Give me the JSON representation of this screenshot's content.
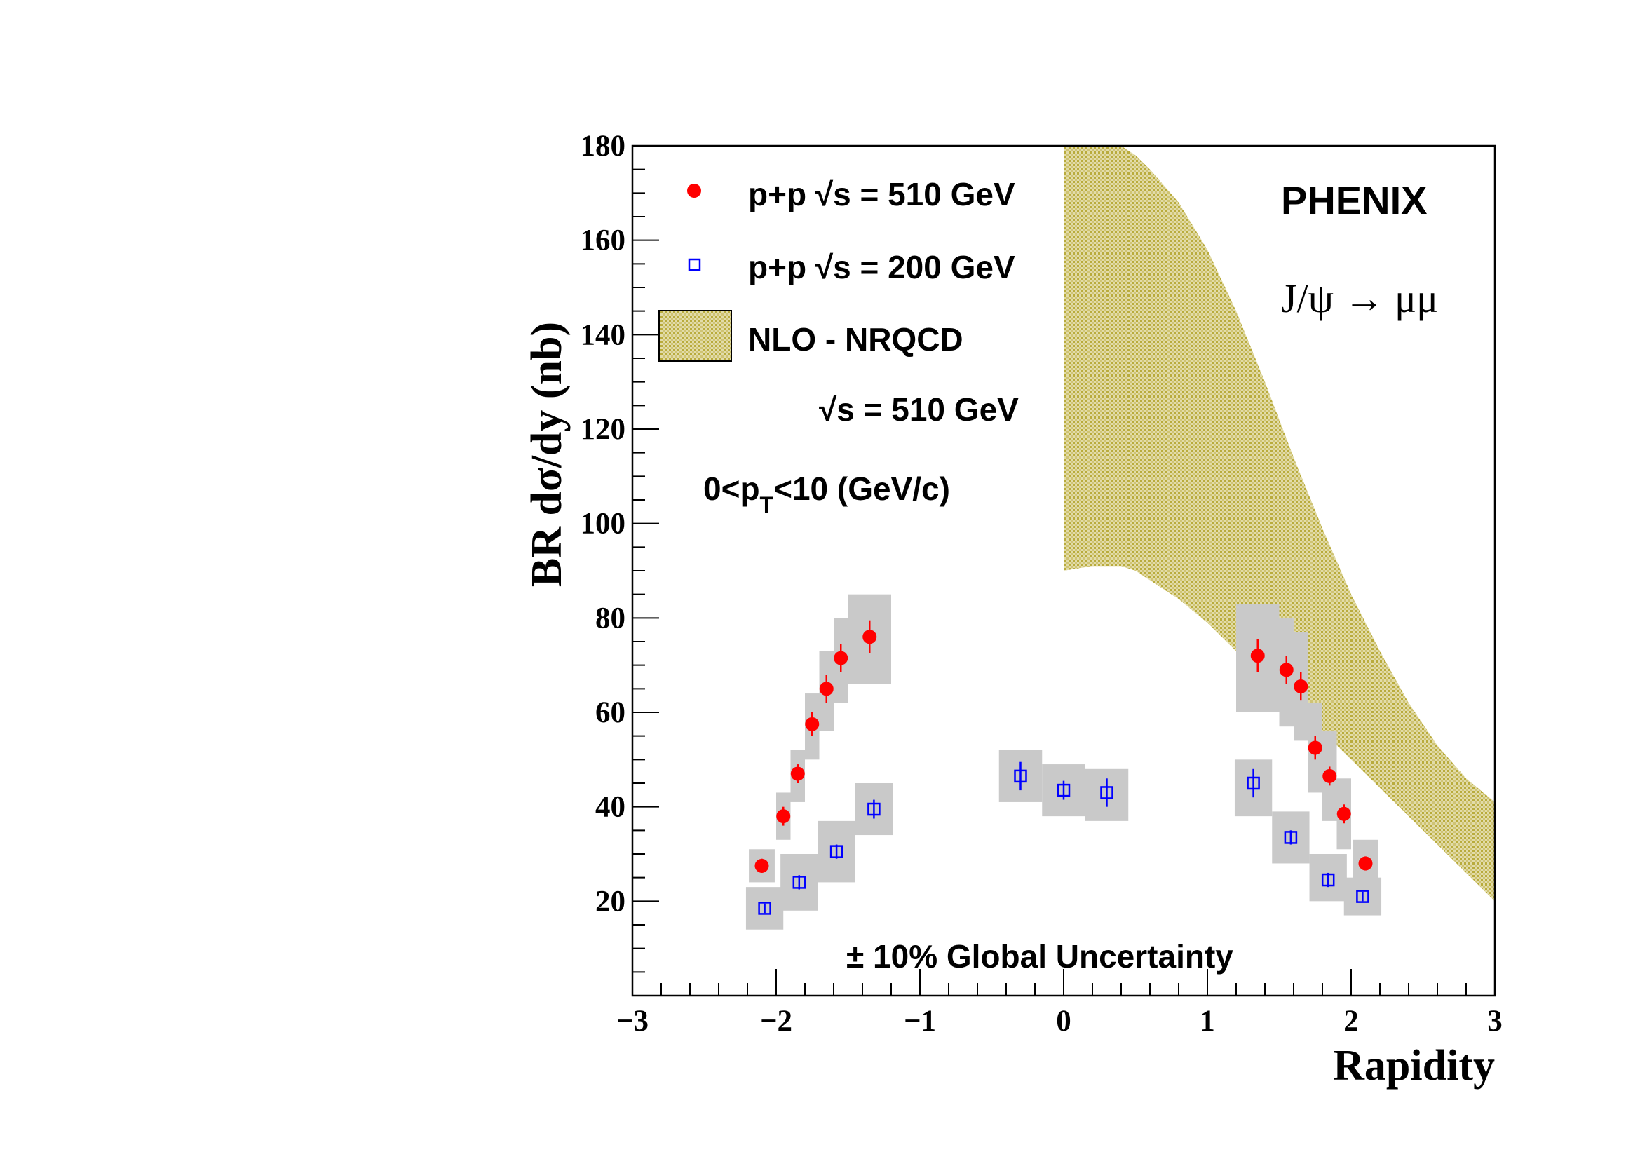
{
  "chart_data": {
    "type": "scatter",
    "xlabel": "Rapidity",
    "ylabel": "BR dσ/dy (nb)",
    "xlim": [
      -3,
      3
    ],
    "ylim": [
      0,
      180
    ],
    "x_ticks": [
      -3,
      -2,
      -1,
      0,
      1,
      2,
      3
    ],
    "x_tick_labels": [
      "−3",
      "−2",
      "−1",
      "0",
      "1",
      "2",
      "3"
    ],
    "y_ticks": [
      20,
      40,
      60,
      80,
      100,
      120,
      140,
      160,
      180
    ],
    "y_tick_labels": [
      "20",
      "40",
      "60",
      "80",
      "100",
      "120",
      "140",
      "160",
      "180"
    ],
    "grid": false,
    "legend_position": "top-left",
    "series": [
      {
        "name": "p+p  √s = 510 GeV",
        "marker": "filled-circle",
        "color": "#ff0000",
        "points": [
          {
            "x": -2.1,
            "y": 27.5,
            "err": 1.5,
            "sys_half_w": 0.09,
            "sys_lo": 24,
            "sys_hi": 31
          },
          {
            "x": -1.95,
            "y": 38.0,
            "err": 2.0,
            "sys_half_w": 0.05,
            "sys_lo": 33,
            "sys_hi": 43
          },
          {
            "x": -1.85,
            "y": 47.0,
            "err": 2.0,
            "sys_half_w": 0.05,
            "sys_lo": 41,
            "sys_hi": 52
          },
          {
            "x": -1.75,
            "y": 57.5,
            "err": 2.5,
            "sys_half_w": 0.05,
            "sys_lo": 50,
            "sys_hi": 64
          },
          {
            "x": -1.65,
            "y": 65.0,
            "err": 3.0,
            "sys_half_w": 0.05,
            "sys_lo": 56,
            "sys_hi": 73
          },
          {
            "x": -1.55,
            "y": 71.5,
            "err": 3.0,
            "sys_half_w": 0.05,
            "sys_lo": 62,
            "sys_hi": 80
          },
          {
            "x": -1.35,
            "y": 76.0,
            "err": 3.5,
            "sys_half_w": 0.15,
            "sys_lo": 66,
            "sys_hi": 85
          },
          {
            "x": 1.35,
            "y": 72.0,
            "err": 3.5,
            "sys_half_w": 0.15,
            "sys_lo": 60,
            "sys_hi": 83
          },
          {
            "x": 1.55,
            "y": 69.0,
            "err": 3.0,
            "sys_half_w": 0.05,
            "sys_lo": 57,
            "sys_hi": 80
          },
          {
            "x": 1.65,
            "y": 65.5,
            "err": 3.0,
            "sys_half_w": 0.05,
            "sys_lo": 54,
            "sys_hi": 77
          },
          {
            "x": 1.75,
            "y": 52.5,
            "err": 2.5,
            "sys_half_w": 0.05,
            "sys_lo": 43,
            "sys_hi": 62
          },
          {
            "x": 1.85,
            "y": 46.5,
            "err": 2.0,
            "sys_half_w": 0.05,
            "sys_lo": 37,
            "sys_hi": 56
          },
          {
            "x": 1.95,
            "y": 38.5,
            "err": 2.0,
            "sys_half_w": 0.05,
            "sys_lo": 31,
            "sys_hi": 46
          },
          {
            "x": 2.1,
            "y": 28.0,
            "err": 1.5,
            "sys_half_w": 0.09,
            "sys_lo": 23,
            "sys_hi": 33
          }
        ]
      },
      {
        "name": "p+p  √s = 200 GeV",
        "marker": "open-square",
        "color": "#0000ff",
        "points": [
          {
            "x": -2.08,
            "y": 18.5,
            "err": 1.0,
            "sys_half_w": 0.13,
            "sys_lo": 14,
            "sys_hi": 23
          },
          {
            "x": -1.84,
            "y": 24.0,
            "err": 1.5,
            "sys_half_w": 0.13,
            "sys_lo": 18,
            "sys_hi": 30
          },
          {
            "x": -1.58,
            "y": 30.5,
            "err": 1.5,
            "sys_half_w": 0.13,
            "sys_lo": 24,
            "sys_hi": 37
          },
          {
            "x": -1.32,
            "y": 39.5,
            "err": 2.0,
            "sys_half_w": 0.13,
            "sys_lo": 34,
            "sys_hi": 45
          },
          {
            "x": -0.3,
            "y": 46.5,
            "err": 3.0,
            "sys_half_w": 0.15,
            "sys_lo": 41,
            "sys_hi": 52
          },
          {
            "x": 0.0,
            "y": 43.5,
            "err": 2.0,
            "sys_half_w": 0.15,
            "sys_lo": 38,
            "sys_hi": 49
          },
          {
            "x": 0.3,
            "y": 43.0,
            "err": 3.0,
            "sys_half_w": 0.15,
            "sys_lo": 37,
            "sys_hi": 48
          },
          {
            "x": 1.32,
            "y": 45.0,
            "err": 3.0,
            "sys_half_w": 0.13,
            "sys_lo": 38,
            "sys_hi": 50
          },
          {
            "x": 1.58,
            "y": 33.5,
            "err": 1.5,
            "sys_half_w": 0.13,
            "sys_lo": 28,
            "sys_hi": 39
          },
          {
            "x": 1.84,
            "y": 24.5,
            "err": 1.5,
            "sys_half_w": 0.13,
            "sys_lo": 20,
            "sys_hi": 30
          },
          {
            "x": 2.08,
            "y": 21.0,
            "err": 1.0,
            "sys_half_w": 0.13,
            "sys_lo": 17,
            "sys_hi": 25
          }
        ]
      }
    ],
    "band": {
      "name": "NLO - NRQCD",
      "color": "#c2b548",
      "x": [
        0.0,
        0.2,
        0.3,
        0.4,
        0.5,
        0.6,
        0.8,
        1.0,
        1.2,
        1.4,
        1.6,
        1.8,
        2.0,
        2.2,
        2.4,
        2.6,
        2.8,
        3.0
      ],
      "upper": [
        180,
        180,
        180,
        180,
        178,
        175,
        168,
        158,
        145,
        130,
        114,
        99,
        85,
        73,
        62,
        53,
        46,
        41
      ],
      "lower": [
        90,
        91,
        91,
        91,
        90,
        88,
        84,
        79,
        73,
        67,
        61,
        56,
        50,
        44,
        38,
        32,
        26,
        20
      ]
    }
  },
  "annotations": {
    "experiment": "PHENIX",
    "process": "J/ψ  →  μμ",
    "band_energy": "√s = 510 GeV",
    "pt_range_prefix": "0<p",
    "pt_range_sub": "T",
    "pt_range_suffix": "<10 (GeV/c)",
    "global_uncertainty": "± 10% Global Uncertainty"
  }
}
